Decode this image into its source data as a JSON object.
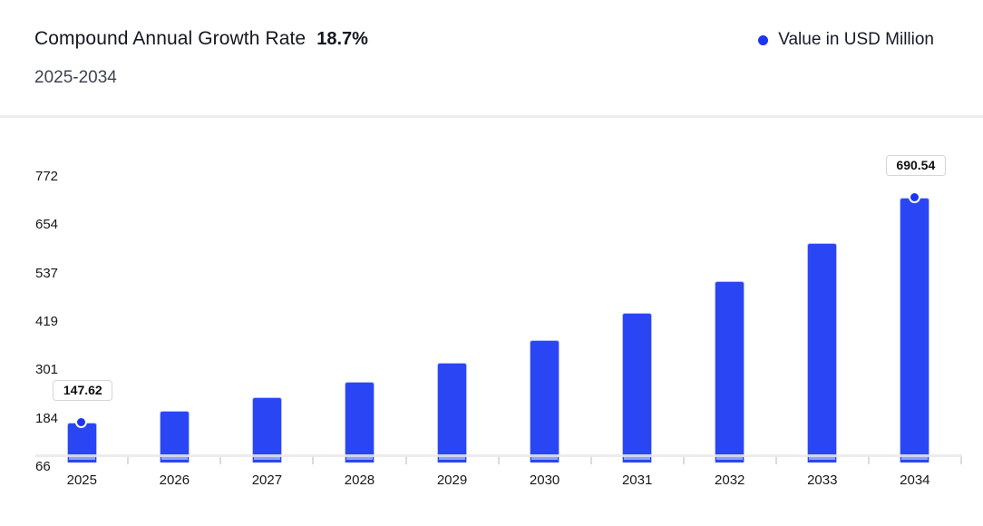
{
  "header": {
    "title": "Compound Annual Growth Rate",
    "cagr": "18.7%",
    "subtitle": "2025-2034",
    "legend": {
      "label": "Value in USD Million"
    }
  },
  "colors": {
    "bar": "#2a46f4",
    "bar_border": "#b9c2fa",
    "bar_stripe": "#8fa2f8",
    "marker": "#1c35ee",
    "legend_dot": "#1c35ee",
    "axis_line": "#e9e9e9",
    "text_dark": "#14171f"
  },
  "chart_data": {
    "type": "bar",
    "title": "Compound Annual Growth Rate 18.7%",
    "subtitle": "2025-2034",
    "xlabel": "",
    "ylabel": "",
    "categories": [
      "2025",
      "2026",
      "2027",
      "2028",
      "2029",
      "2030",
      "2031",
      "2032",
      "2033",
      "2034"
    ],
    "series": [
      {
        "name": "Value in USD Million",
        "values": [
          147.62,
          175.22,
          207.99,
          246.89,
          293.06,
          347.86,
          412.91,
          490.12,
          581.78,
          690.54
        ]
      }
    ],
    "y_ticks": [
      772,
      654,
      537,
      419,
      301,
      184,
      66
    ],
    "ylim": [
      66,
      772
    ],
    "grid": false,
    "legend_position": "top-right",
    "annotations": [
      {
        "category": "2025",
        "label": "147.62",
        "marker": true
      },
      {
        "category": "2034",
        "label": "690.54",
        "marker": true
      }
    ]
  }
}
